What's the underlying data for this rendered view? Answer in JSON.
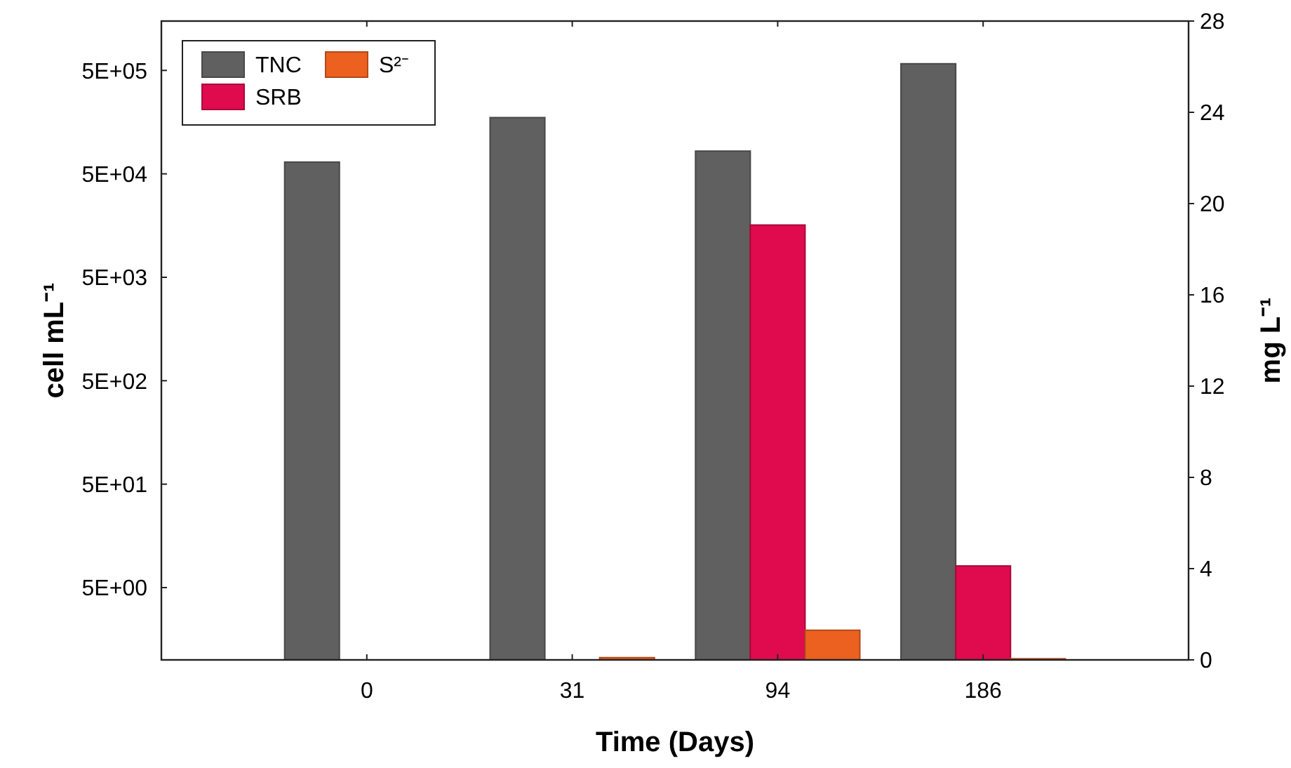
{
  "chart_data": {
    "type": "bar",
    "xlabel": "Time (Days)",
    "ylabel": "cell mL⁻¹",
    "y2label": "mg L⁻¹",
    "categories": [
      "0",
      "31",
      "94",
      "186"
    ],
    "series": [
      {
        "name": "TNC",
        "color": "#606060",
        "values": [
          65000,
          175000,
          83000,
          580000
        ]
      },
      {
        "name": "SRB",
        "color": "#e00a4f",
        "values": [
          null,
          null,
          16000,
          8.1
        ]
      },
      {
        "name": "S²⁻",
        "color": "#ec6120",
        "axis": "y2",
        "values": [
          0,
          0.1,
          1.3,
          0.05
        ]
      }
    ],
    "log": "y",
    "ylim": [
      1,
      1500000
    ],
    "yticks": [
      {
        "value": 5,
        "label": "5E+00"
      },
      {
        "value": 50,
        "label": "5E+01"
      },
      {
        "value": 500,
        "label": "5E+02"
      },
      {
        "value": 5000,
        "label": "5E+03"
      },
      {
        "value": 50000,
        "label": "5E+04"
      },
      {
        "value": 500000,
        "label": "5E+05"
      }
    ],
    "y2lim": [
      0,
      28
    ],
    "y2ticks": [
      0,
      4,
      8,
      12,
      16,
      20,
      24,
      28
    ],
    "legend": "top left",
    "grid": false
  }
}
